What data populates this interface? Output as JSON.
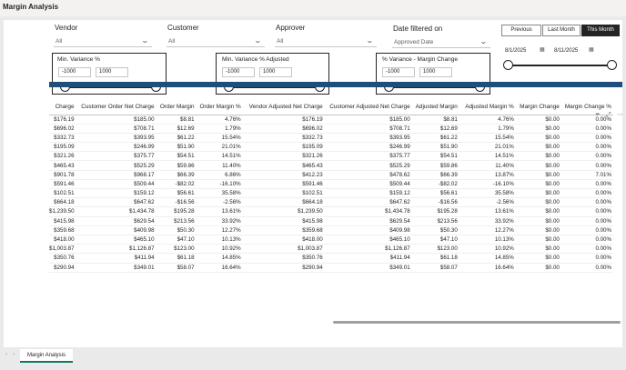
{
  "app": {
    "title": "Margin Analysis"
  },
  "filters": {
    "vendor": {
      "label": "Vendor",
      "value": "All"
    },
    "customer": {
      "label": "Customer",
      "value": "All"
    },
    "approver": {
      "label": "Approver",
      "value": "All"
    },
    "date_filtered_on": {
      "label": "Date filtered on",
      "value": "Approved Date"
    }
  },
  "date_buttons": {
    "previous": "Previous",
    "last_month": "Last Month",
    "this_month": "This Month"
  },
  "date_range": {
    "start": "8/1/2025",
    "end": "8/11/2025"
  },
  "ranges": {
    "min_variance": {
      "title": "Min. Variance %",
      "min": "-1000",
      "max": "1000"
    },
    "min_variance_adjusted": {
      "title": "Min. Variance % Adjusted",
      "min": "-1000",
      "max": "1000"
    },
    "variance_margin_change": {
      "title": "% Variance - Margin Change",
      "min": "-1000",
      "max": "1000"
    }
  },
  "table": {
    "columns": [
      "Charge",
      "Customer Order Net Charge",
      "Order Margin",
      "Order Margin %",
      "Vendor Adjusted Net Charge",
      "Customer Adjusted Net Charge",
      "Adjusted Margin",
      "Adjusted Margin %",
      "Margin Change",
      "Margin Change %"
    ],
    "rows": [
      [
        "$176.19",
        "$185.00",
        "$8.81",
        "4.76%",
        "$176.19",
        "$185.00",
        "$8.81",
        "4.76%",
        "$0.00",
        "0.00%"
      ],
      [
        "$696.02",
        "$708.71",
        "$12.69",
        "1.79%",
        "$696.02",
        "$708.71",
        "$12.69",
        "1.79%",
        "$0.00",
        "0.00%"
      ],
      [
        "$332.73",
        "$393.95",
        "$61.22",
        "15.54%",
        "$332.73",
        "$393.95",
        "$61.22",
        "15.54%",
        "$0.00",
        "0.00%"
      ],
      [
        "$195.09",
        "$246.99",
        "$51.90",
        "21.01%",
        "$195.09",
        "$246.99",
        "$51.90",
        "21.01%",
        "$0.00",
        "0.00%"
      ],
      [
        "$321.26",
        "$375.77",
        "$54.51",
        "14.51%",
        "$321.26",
        "$375.77",
        "$54.51",
        "14.51%",
        "$0.00",
        "0.00%"
      ],
      [
        "$465.43",
        "$525.29",
        "$59.86",
        "11.40%",
        "$465.43",
        "$525.29",
        "$59.86",
        "11.40%",
        "$0.00",
        "0.00%"
      ],
      [
        "$901.78",
        "$968.17",
        "$66.39",
        "6.86%",
        "$412.23",
        "$478.62",
        "$66.39",
        "13.87%",
        "$0.00",
        "7.01%"
      ],
      [
        "$591.46",
        "$509.44",
        "-$82.02",
        "-16.10%",
        "$591.46",
        "$509.44",
        "-$82.02",
        "-16.10%",
        "$0.00",
        "0.00%"
      ],
      [
        "$102.51",
        "$159.12",
        "$56.61",
        "35.58%",
        "$102.51",
        "$159.12",
        "$56.61",
        "35.58%",
        "$0.00",
        "0.00%"
      ],
      [
        "$664.18",
        "$647.62",
        "-$16.56",
        "-2.56%",
        "$664.18",
        "$647.62",
        "-$16.56",
        "-2.56%",
        "$0.00",
        "0.00%"
      ],
      [
        "$1,239.50",
        "$1,434.78",
        "$195.28",
        "13.61%",
        "$1,239.50",
        "$1,434.78",
        "$195.28",
        "13.61%",
        "$0.00",
        "0.00%"
      ],
      [
        "$415.98",
        "$629.54",
        "$213.56",
        "33.92%",
        "$415.98",
        "$629.54",
        "$213.56",
        "33.92%",
        "$0.00",
        "0.00%"
      ],
      [
        "$359.68",
        "$409.98",
        "$50.30",
        "12.27%",
        "$359.68",
        "$409.98",
        "$50.30",
        "12.27%",
        "$0.00",
        "0.00%"
      ],
      [
        "$418.00",
        "$465.10",
        "$47.10",
        "10.13%",
        "$418.00",
        "$465.10",
        "$47.10",
        "10.13%",
        "$0.00",
        "0.00%"
      ],
      [
        "$1,003.87",
        "$1,126.87",
        "$123.00",
        "10.92%",
        "$1,003.87",
        "$1,126.87",
        "$123.00",
        "10.92%",
        "$0.00",
        "0.00%"
      ],
      [
        "$350.76",
        "$411.94",
        "$61.18",
        "14.85%",
        "$350.76",
        "$411.94",
        "$61.18",
        "14.85%",
        "$0.00",
        "0.00%"
      ],
      [
        "$290.94",
        "$349.01",
        "$58.07",
        "16.64%",
        "$290.94",
        "$349.01",
        "$58.07",
        "16.64%",
        "$0.00",
        "0.00%"
      ]
    ]
  },
  "tabs": [
    {
      "label": "Margin Analysis"
    }
  ],
  "icons": {
    "filter": "filter-icon",
    "focus": "focus-mode-icon",
    "more": "more-options-icon",
    "calendar": "calendar-icon",
    "chevron": "chevron-down-icon"
  },
  "colors": {
    "accent": "#1f4e79",
    "tab_underline": "#117865",
    "active_button": "#252423"
  }
}
